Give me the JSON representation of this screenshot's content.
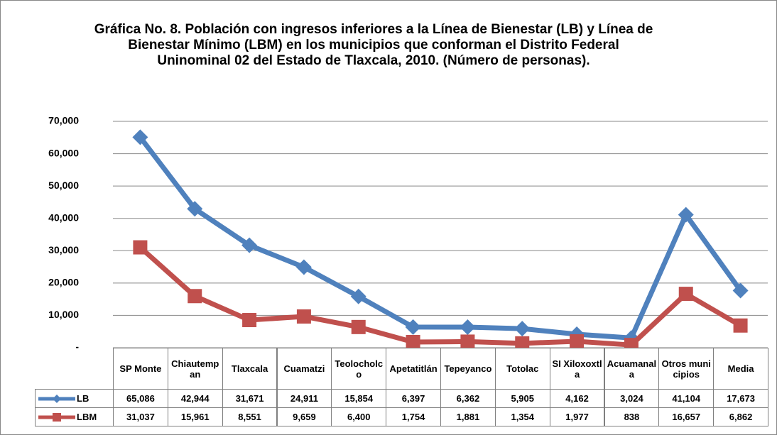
{
  "chart_data": {
    "type": "line",
    "title": "Gráfica No. 8. Población con ingresos inferiores a la  Línea de Bienestar (LB) y Línea de Bienestar Mínimo (LBM) en los municipios que conforman el Distrito Federal Uninominal 02 del Estado de Tlaxcala, 2010. (Número de personas).",
    "categories": [
      "SP Monte",
      "Chiautempan",
      "Tlaxcala",
      "Cuamatzi",
      "Teolocholco",
      "Apetatitlán",
      "Tepeyanco",
      "Totolac",
      "SI Xiloxoxtla",
      "Acuamanala",
      "Otros municipios",
      "Media"
    ],
    "series": [
      {
        "name": "LB",
        "color": "#4f81bd",
        "marker": "diamond",
        "values": [
          65086,
          42944,
          31671,
          24911,
          15854,
          6397,
          6362,
          5905,
          4162,
          3024,
          41104,
          17673
        ],
        "value_labels": [
          "65,086",
          "42,944",
          "31,671",
          "24,911",
          "15,854",
          "6,397",
          "6,362",
          "5,905",
          "4,162",
          "3,024",
          "41,104",
          "17,673"
        ]
      },
      {
        "name": "LBM",
        "color": "#c0504d",
        "marker": "square",
        "values": [
          31037,
          15961,
          8551,
          9659,
          6400,
          1754,
          1881,
          1354,
          1977,
          838,
          16657,
          6862
        ],
        "value_labels": [
          "31,037",
          "15,961",
          "8,551",
          "9,659",
          "6,400",
          "1,754",
          "1,881",
          "1,354",
          "1,977",
          "838",
          "16,657",
          "6,862"
        ]
      }
    ],
    "ylim": [
      0,
      70000
    ],
    "yticks": [
      {
        "value": 0,
        "label": "-"
      },
      {
        "value": 10000,
        "label": "10,000"
      },
      {
        "value": 20000,
        "label": "20,000"
      },
      {
        "value": 30000,
        "label": "30,000"
      },
      {
        "value": 40000,
        "label": "40,000"
      },
      {
        "value": 50000,
        "label": "50,000"
      },
      {
        "value": 60000,
        "label": "60,000"
      },
      {
        "value": 70000,
        "label": "70,000"
      }
    ],
    "grid": true
  }
}
